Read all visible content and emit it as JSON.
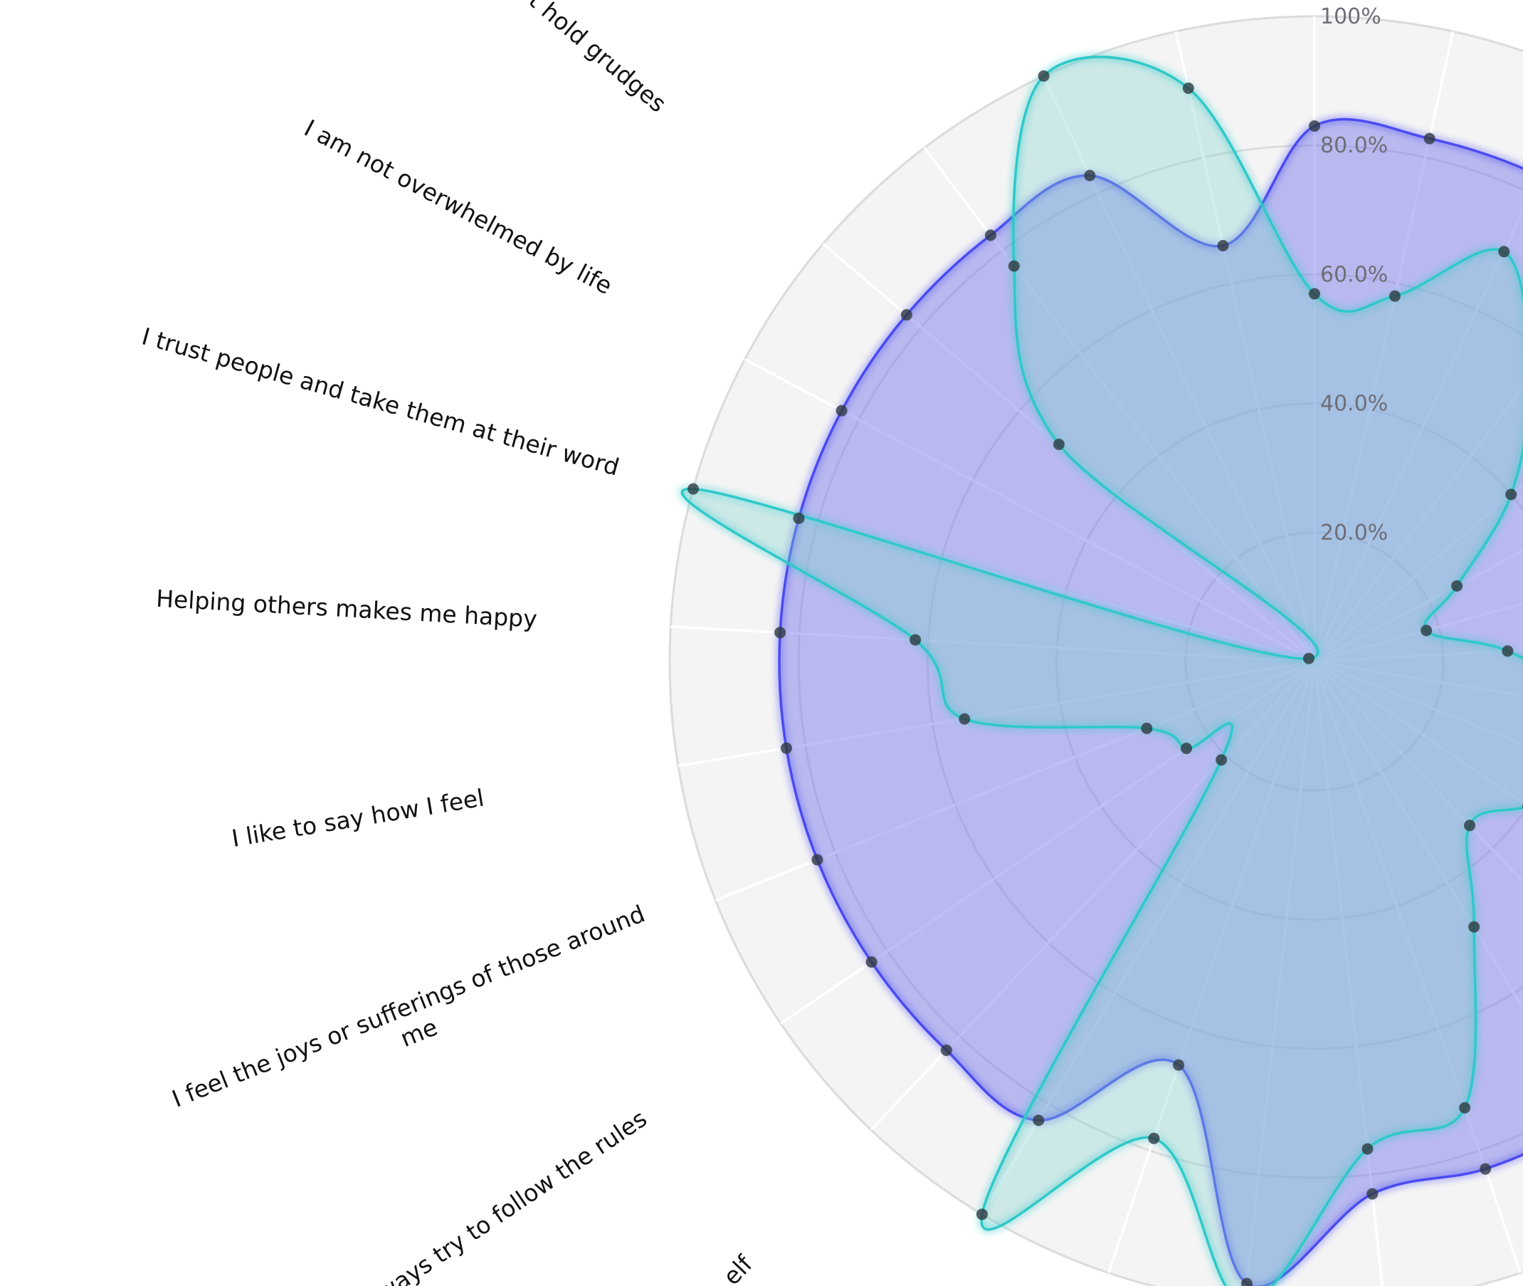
{
  "chart_data": {
    "type": "radar",
    "categories": [
      null,
      null,
      null,
      null,
      null,
      null,
      null,
      null,
      null,
      null,
      null,
      null,
      null,
      null,
      null,
      null,
      null,
      null,
      "elf",
      "ways try to follow the rules",
      "I feel the joys or sufferings of those around me",
      "I like to say how I feel",
      "Helping others makes me happy",
      "I trust people and take them at their word",
      "I am not overwhelmed by life",
      "t hold grudges",
      null,
      null,
      null
    ],
    "series": [
      {
        "color": "#4a4af2",
        "fill": "rgba(112,112,232,0.45)",
        "values": [
          83,
          83,
          83,
          83,
          83,
          83,
          83,
          83,
          83,
          83,
          83,
          83,
          83,
          83,
          83,
          97,
          66,
          83,
          83,
          83,
          83,
          83,
          83,
          83,
          83,
          83,
          83,
          83,
          66
        ]
      },
      {
        "color": "#2ec9c9",
        "fill": "rgba(130,210,205,0.35)",
        "values": [
          57,
          58,
          70,
          55,
          40,
          25,
          18,
          30,
          45,
          50,
          40,
          35,
          48,
          73,
          76,
          100,
          78,
          100,
          21,
          24,
          28,
          55,
          62,
          100,
          1,
          52,
          77,
          100,
          91
        ]
      }
    ],
    "ylim": [
      0,
      100
    ],
    "yticks": [
      {
        "value": 20,
        "label": "20.0%"
      },
      {
        "value": 40,
        "label": "40.0%"
      },
      {
        "value": 60,
        "label": "60.0%"
      },
      {
        "value": 80,
        "label": "80.0%"
      },
      {
        "value": 100,
        "label": "100%"
      }
    ],
    "grid": true
  }
}
